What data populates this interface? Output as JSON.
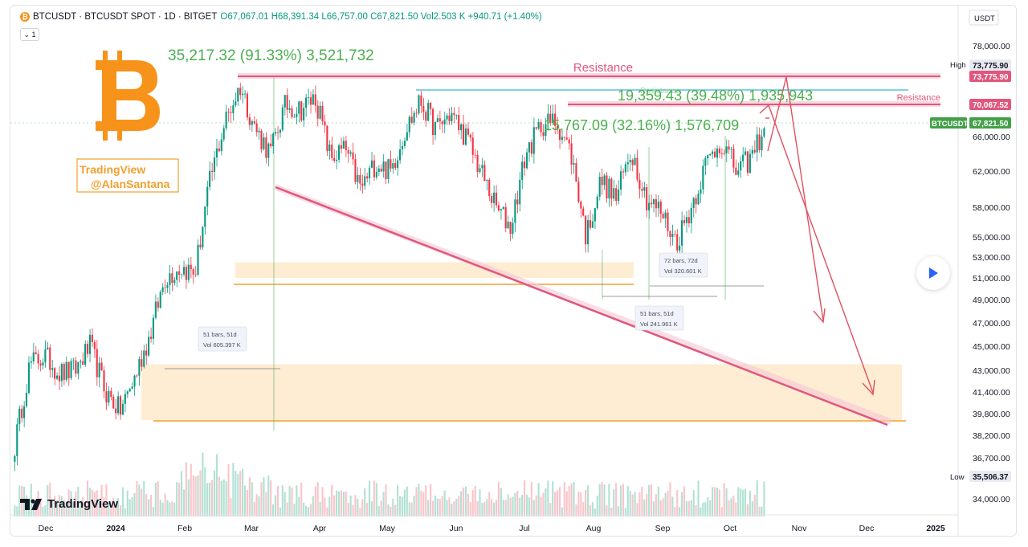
{
  "header": {
    "badge": "₿",
    "symbol": "BTCUSDT · BTCUSDT SPOT · 1D · BITGET",
    "ohlc": "O67,067.01 H68,391.34 L66,757.00 C67,821.50 Vol2.503 K +940.71 (+1.40%)",
    "collapse": "1"
  },
  "watermark": {
    "tradingview": "TradingView",
    "author": "@AlanSantana",
    "footer_logo": "TradingView"
  },
  "colors": {
    "up": "#089981",
    "down": "#f23645",
    "resistance": "#e0577d",
    "support": "#f0a030",
    "zone": "#fde6c4",
    "bitcoin": "#f7931a",
    "measure": "#4caf50"
  },
  "chart_data": {
    "type": "candlestick",
    "title": "BTCUSDT · BTCUSDT SPOT · 1D · BITGET",
    "currency": "USDT",
    "x_ticks": [
      "Dec",
      "2024",
      "Feb",
      "Mar",
      "Apr",
      "May",
      "Jun",
      "Jul",
      "Aug",
      "Sep",
      "Oct",
      "Nov",
      "Dec",
      "2025"
    ],
    "y_ticks": [
      78000,
      73775.9,
      70067.52,
      67821.5,
      66000,
      62000,
      58000,
      55000,
      53000,
      51000,
      49000,
      47000,
      45000,
      43000,
      41400,
      39800,
      38200,
      36700,
      35506.37,
      34000
    ],
    "y_tick_labels": [
      "78,000.00",
      "73,775.90",
      "70,067.52",
      "67,821.50",
      "66,000.00",
      "62,000.00",
      "58,000.00",
      "55,000.00",
      "53,000.00",
      "51,000.00",
      "49,000.00",
      "47,000.00",
      "45,000.00",
      "43,000.00",
      "41,400.00",
      "39,800.00",
      "38,200.00",
      "36,700.00",
      "35,506.37",
      "34,000.00"
    ],
    "price_labels": {
      "high_label": "High",
      "high": "73,775.90",
      "high_tag": "73,775.90",
      "resistance_tag": "70,067.52",
      "ticker": "BTCUSDT",
      "last": "67,821.50",
      "low_label": "Low",
      "low": "35,506.37"
    },
    "close_path": [
      [
        "Dec",
        37500
      ],
      [
        "Dec",
        43500
      ],
      [
        "2024",
        44200
      ],
      [
        "2024",
        42800
      ],
      [
        "2024",
        43000
      ],
      [
        "2024",
        45000
      ],
      [
        "2024",
        41500
      ],
      [
        "2024",
        40000
      ],
      [
        "Feb",
        42500
      ],
      [
        "Feb",
        46000
      ],
      [
        "Feb",
        51000
      ],
      [
        "Feb",
        52000
      ],
      [
        "Feb",
        51500
      ],
      [
        "Mar",
        61000
      ],
      [
        "Mar",
        68000
      ],
      [
        "Mar",
        72500
      ],
      [
        "Mar",
        67000
      ],
      [
        "Mar",
        64000
      ],
      [
        "Apr",
        70000
      ],
      [
        "Apr",
        69500
      ],
      [
        "Apr",
        71000
      ],
      [
        "Apr",
        63500
      ],
      [
        "Apr",
        64500
      ],
      [
        "May",
        60000
      ],
      [
        "May",
        63000
      ],
      [
        "May",
        62000
      ],
      [
        "May",
        67000
      ],
      [
        "Jun",
        70500
      ],
      [
        "Jun",
        67000
      ],
      [
        "Jun",
        69000
      ],
      [
        "Jun",
        66000
      ],
      [
        "Jun",
        62000
      ],
      [
        "Jul",
        58000
      ],
      [
        "Jul",
        56000
      ],
      [
        "Jul",
        64000
      ],
      [
        "Jul",
        67500
      ],
      [
        "Jul",
        68000
      ],
      [
        "Aug",
        64000
      ],
      [
        "Aug",
        55000
      ],
      [
        "Aug",
        61000
      ],
      [
        "Aug",
        59000
      ],
      [
        "Aug",
        64500
      ],
      [
        "Sep",
        59000
      ],
      [
        "Sep",
        57500
      ],
      [
        "Sep",
        54500
      ],
      [
        "Sep",
        58000
      ],
      [
        "Sep",
        63000
      ],
      [
        "Sep",
        65500
      ],
      [
        "Oct",
        62000
      ],
      [
        "Oct",
        63500
      ],
      [
        "Oct",
        67821.5
      ]
    ],
    "annotations": {
      "resistance_label": "Resistance",
      "resistance_label_2": "Resistance",
      "resistance_label_faint": "Resistance",
      "measure_1": "35,217.32 (91.33%) 3,521,732",
      "measure_2": "19,359.43 (39.48%) 1,935,943",
      "measure_3": "15,767.09 (32.16%) 1,576,709",
      "bars_1": "51 bars, 51d",
      "vol_1": "Vol 605.397 K",
      "bars_2": "72 bars, 72d",
      "vol_2": "Vol 320.601 K",
      "bars_3": "51 bars, 51d",
      "vol_3": "Vol 241.961 K"
    },
    "levels": {
      "resistance_top": 73775.9,
      "resistance_mid": 70067.52,
      "support_upper": 51000,
      "support_lower": 39800,
      "zone_upper_top": 52500,
      "zone_lower_top": 43500
    },
    "grid": false,
    "legend": "none"
  }
}
